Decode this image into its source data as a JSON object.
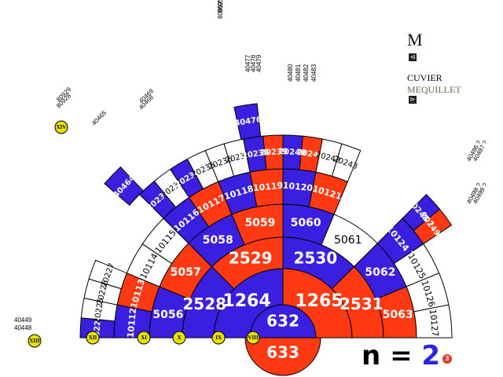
{
  "legend": {
    "letter": "M",
    "surname_1": "CUVIER",
    "surname_2": "MEQUILLET",
    "icon_1": "collapse-arrow-icon",
    "icon_2": "expand-arrow-icon"
  },
  "generation_control": {
    "prefix": "n",
    "equals": "=",
    "value": "2",
    "badge": "3",
    "badge_icon": "numbered-badge-icon"
  },
  "colors": {
    "male": "#3b1fe0",
    "female": "#ff3a12",
    "unknown": "#ffffff"
  },
  "root": {
    "top": "632",
    "bottom": "633"
  },
  "rings": [
    {
      "level": 1,
      "cells": [
        {
          "n": "1264",
          "c": "blue"
        },
        {
          "n": "1265",
          "c": "red"
        }
      ]
    },
    {
      "level": 2,
      "cells": [
        {
          "n": "2528",
          "c": "blue"
        },
        {
          "n": "2529",
          "c": "red"
        },
        {
          "n": "2530",
          "c": "blue"
        },
        {
          "n": "2531",
          "c": "red"
        }
      ]
    },
    {
      "level": 3,
      "cells": [
        {
          "n": "5056",
          "c": "blue"
        },
        {
          "n": "5057",
          "c": "red"
        },
        {
          "n": "5058",
          "c": "blue"
        },
        {
          "n": "5059",
          "c": "red"
        },
        {
          "n": "5060",
          "c": "blue"
        },
        {
          "n": "5061",
          "c": "white"
        },
        {
          "n": "5062",
          "c": "blue"
        },
        {
          "n": "5063",
          "c": "red"
        }
      ]
    },
    {
      "level": 4,
      "cells": [
        {
          "n": "10112",
          "c": "blue"
        },
        {
          "n": "10113",
          "c": "red"
        },
        {
          "n": "10114",
          "c": "white"
        },
        {
          "n": "10115",
          "c": "white"
        },
        {
          "n": "10116",
          "c": "blue"
        },
        {
          "n": "10117",
          "c": "red"
        },
        {
          "n": "10118",
          "c": "blue"
        },
        {
          "n": "10119",
          "c": "red"
        },
        {
          "n": "10120",
          "c": "blue"
        },
        {
          "n": "10121",
          "c": "red"
        },
        {
          "n": "",
          "c": "none"
        },
        {
          "n": "",
          "c": "none"
        },
        {
          "n": "10124 ?",
          "c": "blue"
        },
        {
          "n": "10125",
          "c": "white"
        },
        {
          "n": "10126",
          "c": "white"
        },
        {
          "n": "10127",
          "c": "white"
        }
      ]
    },
    {
      "level": 5,
      "cells": [
        {
          "n": "20224",
          "c": "blue"
        },
        {
          "n": "20225",
          "c": "white"
        },
        {
          "n": "20226",
          "c": "white"
        },
        {
          "n": "20227",
          "c": "white"
        },
        {
          "n": "",
          "c": "none"
        },
        {
          "n": "",
          "c": "none"
        },
        {
          "n": "",
          "c": "none"
        },
        {
          "n": "",
          "c": "none"
        },
        {
          "n": "20232",
          "c": "blue"
        },
        {
          "n": "20233",
          "c": "white"
        },
        {
          "n": "20234",
          "c": "blue"
        },
        {
          "n": "20235",
          "c": "white"
        },
        {
          "n": "20236",
          "c": "white"
        },
        {
          "n": "20237",
          "c": "white"
        },
        {
          "n": "20238",
          "c": "blue"
        },
        {
          "n": "20239",
          "c": "red"
        },
        {
          "n": "20240",
          "c": "blue"
        },
        {
          "n": "20241",
          "c": "red"
        },
        {
          "n": "20242",
          "c": "white"
        },
        {
          "n": "20243",
          "c": "white"
        },
        {
          "n": "",
          "c": "none"
        },
        {
          "n": "",
          "c": "none"
        },
        {
          "n": "",
          "c": "none"
        },
        {
          "n": "",
          "c": "none"
        },
        {
          "n": "20248 ?",
          "c": "blue"
        },
        {
          "n": "20249 ?",
          "c": "red"
        }
      ]
    }
  ],
  "extensions": [
    {
      "n": "40464",
      "c": "blue"
    },
    {
      "n": "40476",
      "c": "blue"
    }
  ],
  "small_labels": [
    {
      "t": "40449"
    },
    {
      "t": "40448"
    },
    {
      "t": "40465"
    },
    {
      "t": "40469"
    },
    {
      "t": "40468"
    },
    {
      "t": "80929"
    },
    {
      "t": "80928"
    },
    {
      "t": "80953"
    },
    {
      "t": "80952"
    },
    {
      "t": "40477"
    },
    {
      "t": "40478"
    },
    {
      "t": "40479"
    },
    {
      "t": "40480"
    },
    {
      "t": "40481"
    },
    {
      "t": "40482"
    },
    {
      "t": "40483"
    },
    {
      "t": "40496 ?"
    },
    {
      "t": "40497 ?"
    },
    {
      "t": "40498 ?"
    },
    {
      "t": "40499 ?"
    }
  ],
  "generations": [
    "XIII",
    "XII",
    "XI",
    "X",
    "IX",
    "VIII",
    "XIV"
  ]
}
